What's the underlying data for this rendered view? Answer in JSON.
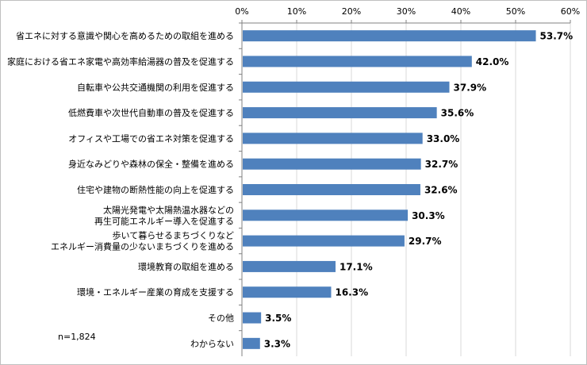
{
  "chart_data": {
    "type": "bar",
    "orientation": "horizontal",
    "categories": [
      "省エネに対する意識や関心を高めるための取組を進める",
      "家庭における省エネ家電や高効率給湯器の普及を促進する",
      "自転車や公共交通機関の利用を促進する",
      "低燃費車や次世代自動車の普及を促進する",
      "オフィスや工場での省エネ対策を促進する",
      "身近なみどりや森林の保全・整備を進める",
      "住宅や建物の断熱性能の向上を促進する",
      [
        "太陽光発電や太陽熱温水器などの",
        "再生可能エネルギー導入を促進する"
      ],
      [
        "歩いて暮らせるまちづくりなど",
        "エネルギー消費量の少ないまちづくりを進める"
      ],
      "環境教育の取組を進める",
      "環境・エネルギー産業の育成を支援する",
      "その他",
      "わからない"
    ],
    "values": [
      53.7,
      42.0,
      37.9,
      35.6,
      33.0,
      32.7,
      32.6,
      30.3,
      29.7,
      17.1,
      16.3,
      3.5,
      3.3
    ],
    "value_labels": [
      "53.7%",
      "42.0%",
      "37.9%",
      "35.6%",
      "33.0%",
      "32.7%",
      "32.6%",
      "30.3%",
      "29.7%",
      "17.1%",
      "16.3%",
      "3.5%",
      "3.3%"
    ],
    "x_ticks": [
      0,
      10,
      20,
      30,
      40,
      50,
      60
    ],
    "x_tick_labels": [
      "0%",
      "10%",
      "20%",
      "30%",
      "40%",
      "50%",
      "60%"
    ],
    "xlim": [
      0,
      60
    ],
    "axis_position": "top",
    "grid": true,
    "bar_color": "#4f81bd",
    "grid_color": "#d9d9d9"
  },
  "note": "n=1,824"
}
